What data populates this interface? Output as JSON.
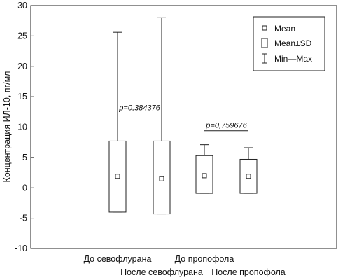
{
  "chart_data": {
    "type": "box",
    "ylabel": "Концентрация ИЛ-10, пг/мл",
    "ylim": [
      -10,
      30
    ],
    "yticks": [
      -10,
      -5,
      0,
      5,
      10,
      15,
      20,
      25,
      30
    ],
    "categories": [
      "До севофлурана",
      "После севофлурана",
      "До пропофола",
      "После пропофола"
    ],
    "series": [
      {
        "category": "До севофлурана",
        "mean": 1.9,
        "mean_minus_sd": -4.0,
        "mean_plus_sd": 7.7,
        "min": -4.0,
        "max": 25.6
      },
      {
        "category": "После севофлурана",
        "mean": 1.5,
        "mean_minus_sd": -4.3,
        "mean_plus_sd": 7.7,
        "min": -4.3,
        "max": 28.0
      },
      {
        "category": "До пропофола",
        "mean": 2.0,
        "mean_minus_sd": -0.9,
        "mean_plus_sd": 5.3,
        "min": -0.9,
        "max": 7.1
      },
      {
        "category": "После пропофола",
        "mean": 1.9,
        "mean_minus_sd": -0.9,
        "mean_plus_sd": 4.7,
        "min": -0.9,
        "max": 6.6
      }
    ],
    "comparisons": [
      {
        "between": [
          0,
          1
        ],
        "label": "p=0,384376",
        "y": 12.3
      },
      {
        "between": [
          2,
          3
        ],
        "label": "p=0,759676",
        "y": 9.4
      }
    ],
    "legend": {
      "position": "top-right",
      "items": [
        {
          "symbol": "square",
          "label": "Mean"
        },
        {
          "symbol": "box",
          "label": "Mean±SD"
        },
        {
          "symbol": "whisker",
          "label": "Min—Max"
        }
      ]
    },
    "grid": false
  }
}
